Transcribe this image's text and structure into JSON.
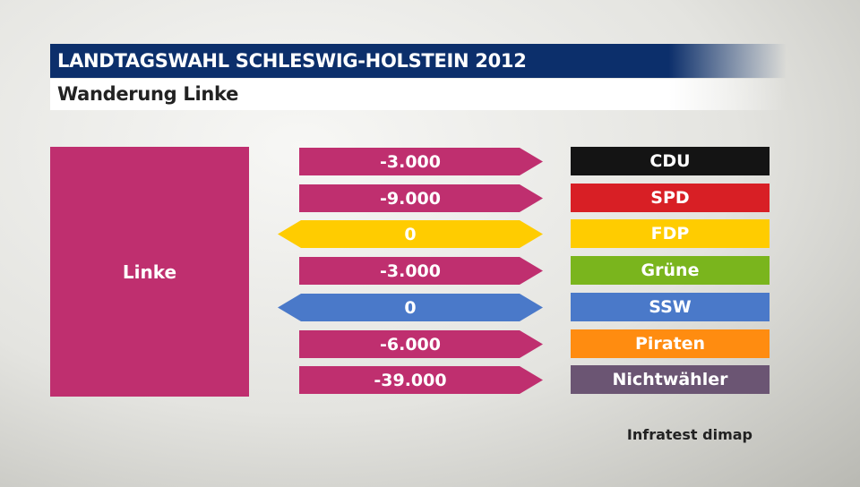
{
  "header": {
    "title": "LANDTAGSWAHL SCHLESWIG-HOLSTEIN 2012",
    "subtitle": "Wanderung Linke"
  },
  "source_party": {
    "label": "Linke",
    "color": "#bf2f6f"
  },
  "colors": {
    "outflow": "#bf2f6f"
  },
  "chart_data": {
    "type": "flow",
    "source": "Linke",
    "flows": [
      {
        "value_label": "-3.000",
        "value": -3000,
        "target": "CDU",
        "target_color": "#141414",
        "direction": "out"
      },
      {
        "value_label": "-9.000",
        "value": -9000,
        "target": "SPD",
        "target_color": "#d81f25",
        "direction": "out"
      },
      {
        "value_label": "0",
        "value": 0,
        "target": "FDP",
        "target_color": "#ffcc00",
        "direction": "both"
      },
      {
        "value_label": "-3.000",
        "value": -3000,
        "target": "Grüne",
        "target_color": "#7ab51d",
        "direction": "out"
      },
      {
        "value_label": "0",
        "value": 0,
        "target": "SSW",
        "target_color": "#4a79c9",
        "direction": "both"
      },
      {
        "value_label": "-6.000",
        "value": -6000,
        "target": "Piraten",
        "target_color": "#ff8c10",
        "direction": "out"
      },
      {
        "value_label": "-39.000",
        "value": -39000,
        "target": "Nichtwähler",
        "target_color": "#6b5573",
        "direction": "out"
      }
    ]
  },
  "credit": "Infratest dimap"
}
